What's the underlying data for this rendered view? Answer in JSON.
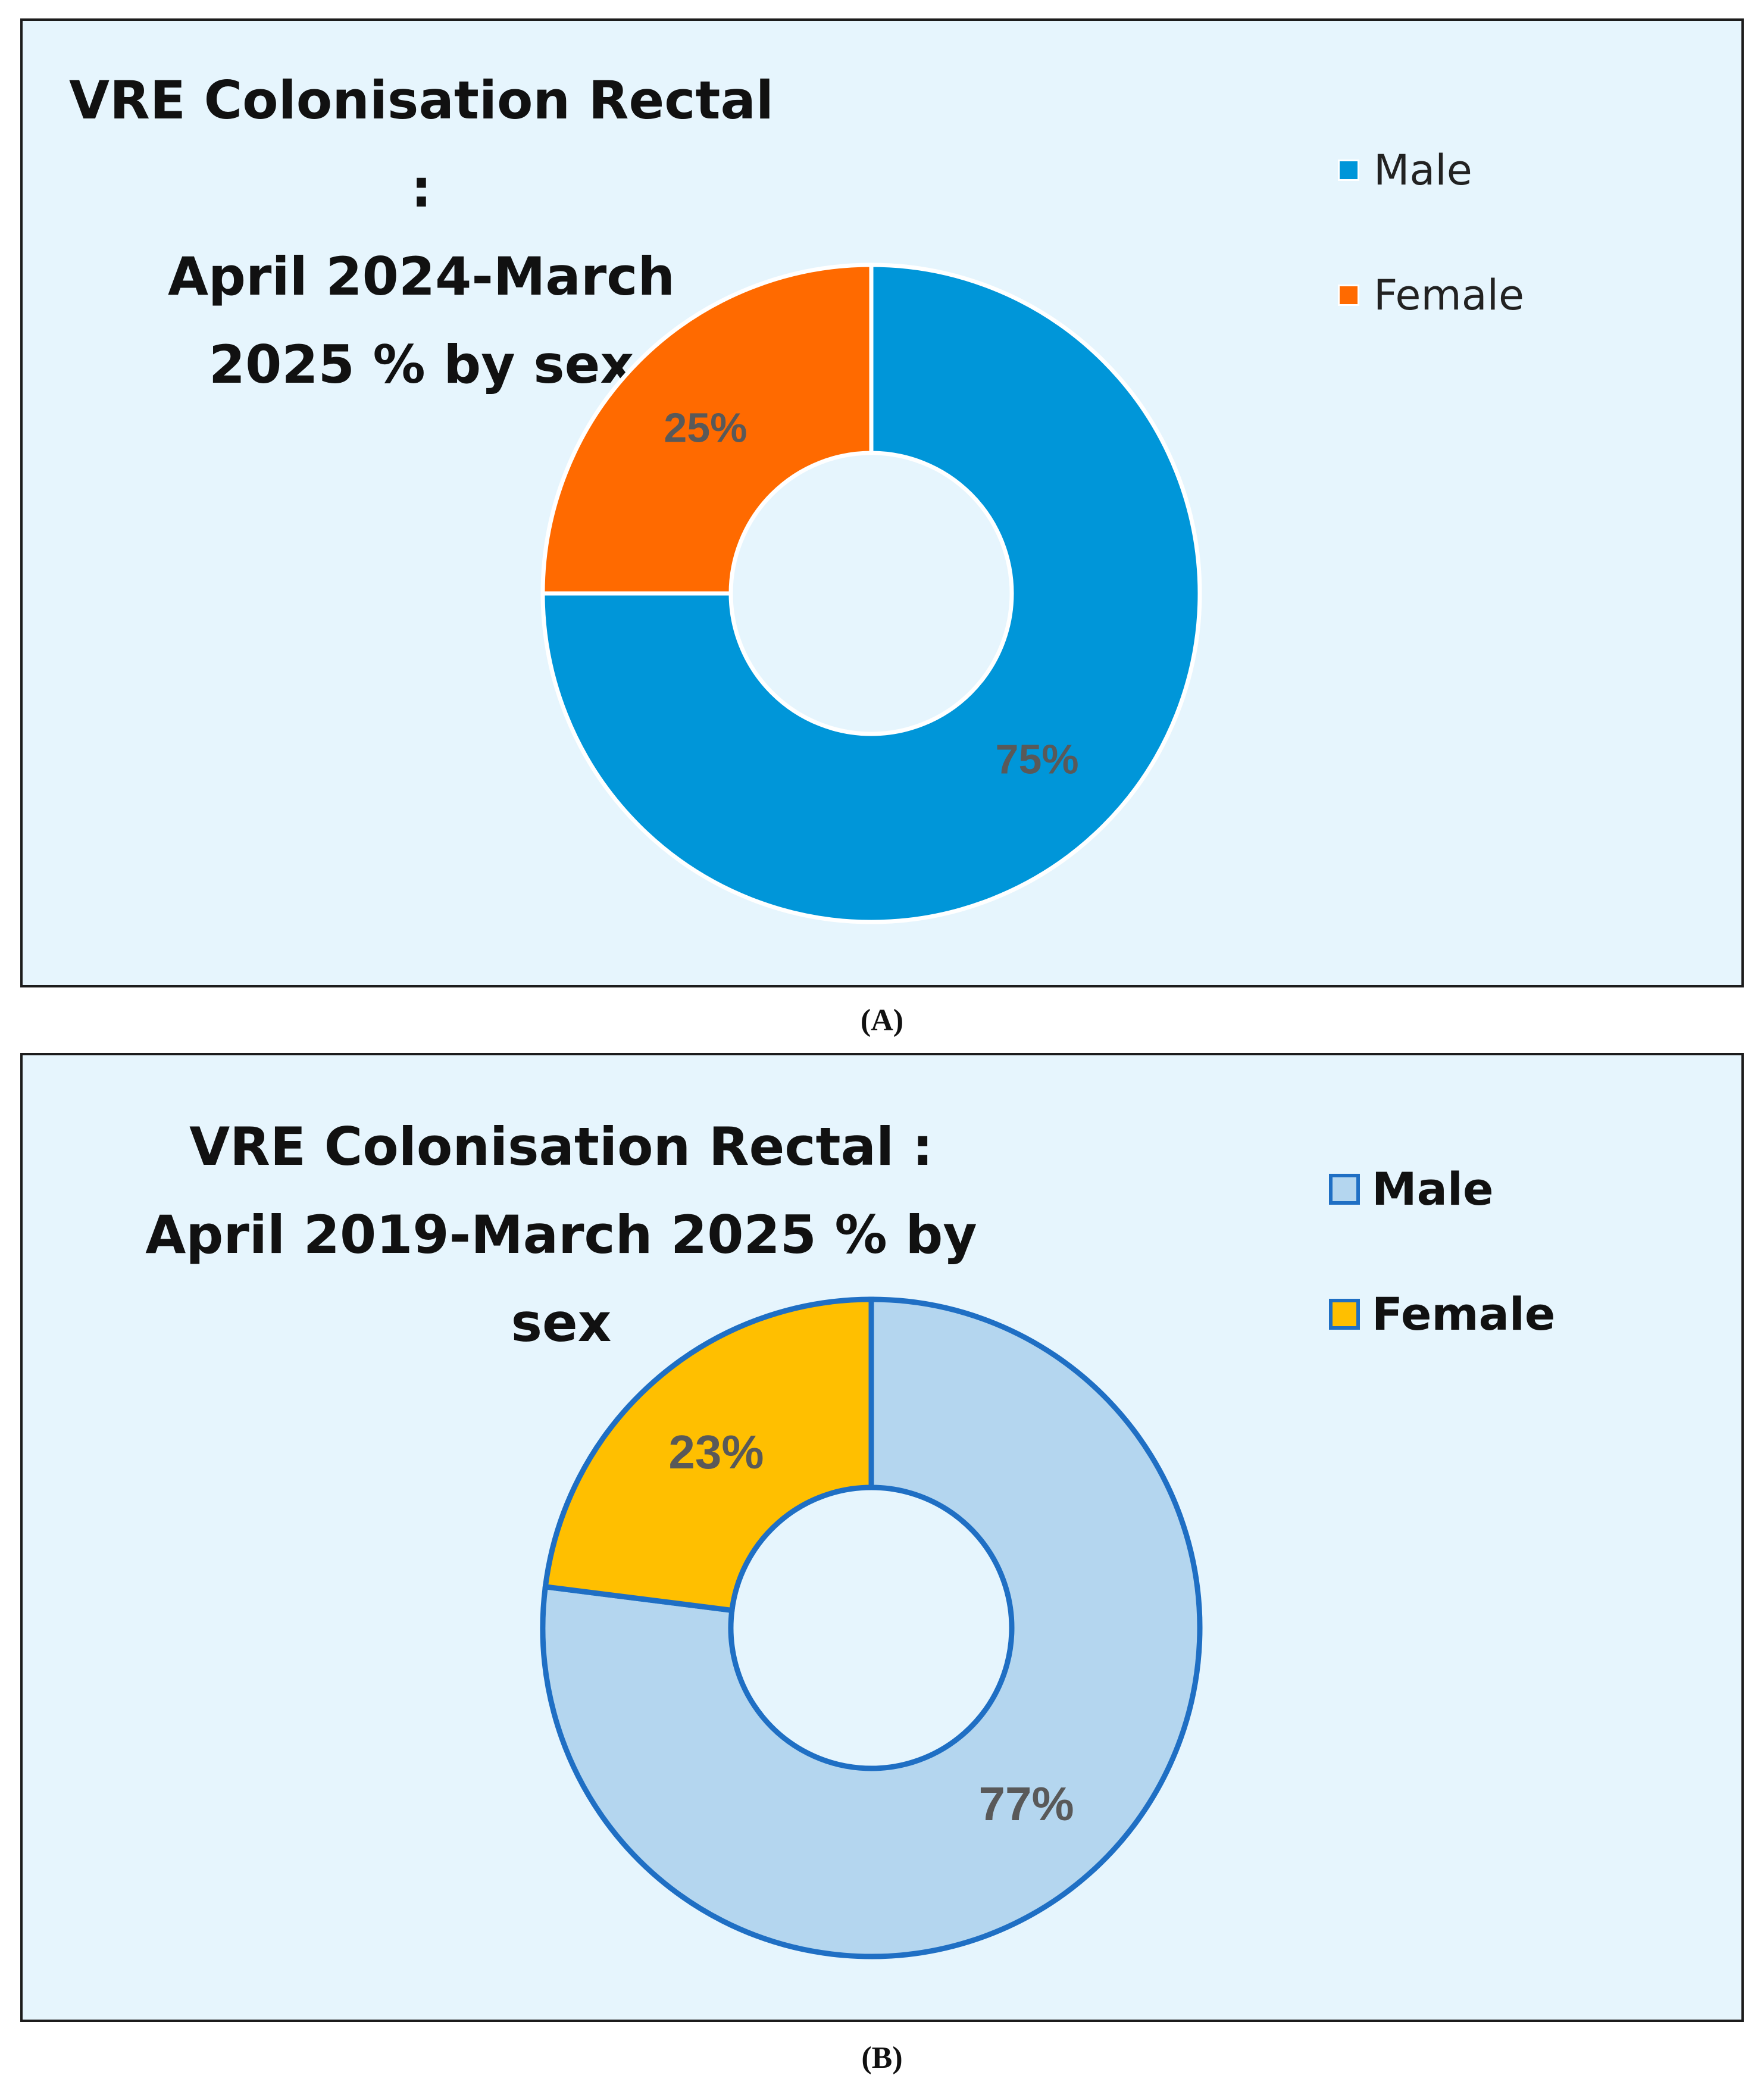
{
  "figure": {
    "caption_a": "(A)",
    "caption_b": "(B)"
  },
  "chart_data": [
    {
      "type": "pie",
      "variant": "donut",
      "title": "VRE Colonisation Rectal : April 2024-March 2025 % by sex",
      "title_lines": [
        "VRE Colonisation Rectal :",
        "April 2024-March",
        "2025 % by sex"
      ],
      "categories": [
        "Male",
        "Female"
      ],
      "values": [
        75,
        25
      ],
      "data_labels": [
        "75%",
        "25%"
      ],
      "colors": [
        "#0096d9",
        "#ff6a00"
      ],
      "slice_border_color": "#ffffff",
      "label_color": "#595959",
      "legend": {
        "placement": "top-right",
        "entries": [
          "Male",
          "Female"
        ]
      }
    },
    {
      "type": "pie",
      "variant": "donut",
      "title": "VRE Colonisation Rectal : April 2019-March 2025 % by sex",
      "title_lines": [
        "VRE Colonisation Rectal :",
        "April 2019-March 2025 % by sex"
      ],
      "categories": [
        "Male",
        "Female"
      ],
      "values": [
        77,
        23
      ],
      "data_labels": [
        "77%",
        "23%"
      ],
      "colors": [
        "#b4d6ef",
        "#ffbf00"
      ],
      "slice_border_color": "#1f6fc4",
      "label_color": "#595959",
      "legend": {
        "placement": "top-right",
        "entries": [
          "Male",
          "Female"
        ]
      }
    }
  ]
}
